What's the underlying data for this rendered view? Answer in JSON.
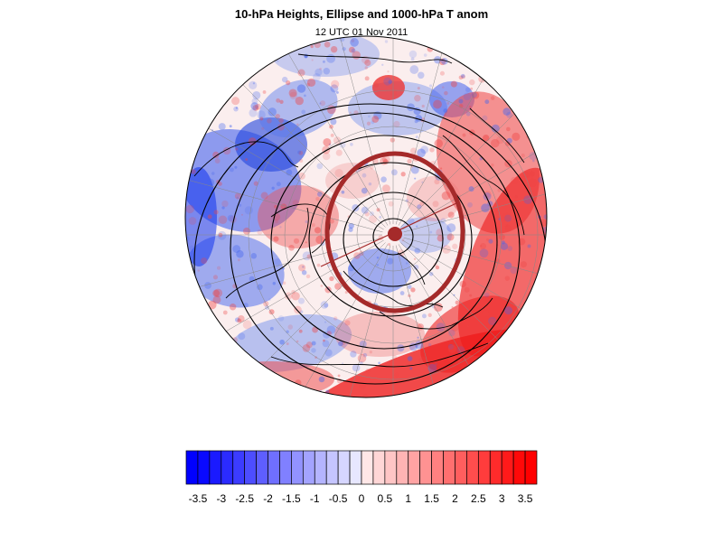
{
  "figure": {
    "title": "10-hPa Heights, Ellipse and 1000-hPa T anom",
    "subtitle": "12 UTC 01 Nov 2011"
  },
  "colors": {
    "ellipse": "#a52a2a",
    "contours": "#000000",
    "negative_max": "#0000ff",
    "positive_max": "#ff0000"
  },
  "colorbar": {
    "levels": [
      -3.75,
      -3.5,
      -3.25,
      -3,
      -2.75,
      -2.5,
      -2.25,
      -2,
      -1.75,
      -1.5,
      -1.25,
      -1,
      -0.75,
      -0.5,
      -0.25,
      0,
      0.25,
      0.5,
      0.75,
      1,
      1.25,
      1.5,
      1.75,
      2,
      2.25,
      2.5,
      2.75,
      3,
      3.25,
      3.5,
      3.75
    ],
    "labels": [
      "-3.5",
      "-3",
      "-2.5",
      "-2",
      "-1.5",
      "-1",
      "-0.5",
      "0",
      "0.5",
      "1",
      "1.5",
      "2",
      "2.5",
      "3",
      "3.5"
    ]
  },
  "chart_data": {
    "type": "heatmap",
    "projection": "north-polar-stereographic",
    "field": "1000-hPa T anom",
    "contours": "10-hPa Heights",
    "overlay": "Ellipse",
    "color_range": [
      -3.75,
      3.75
    ]
  }
}
